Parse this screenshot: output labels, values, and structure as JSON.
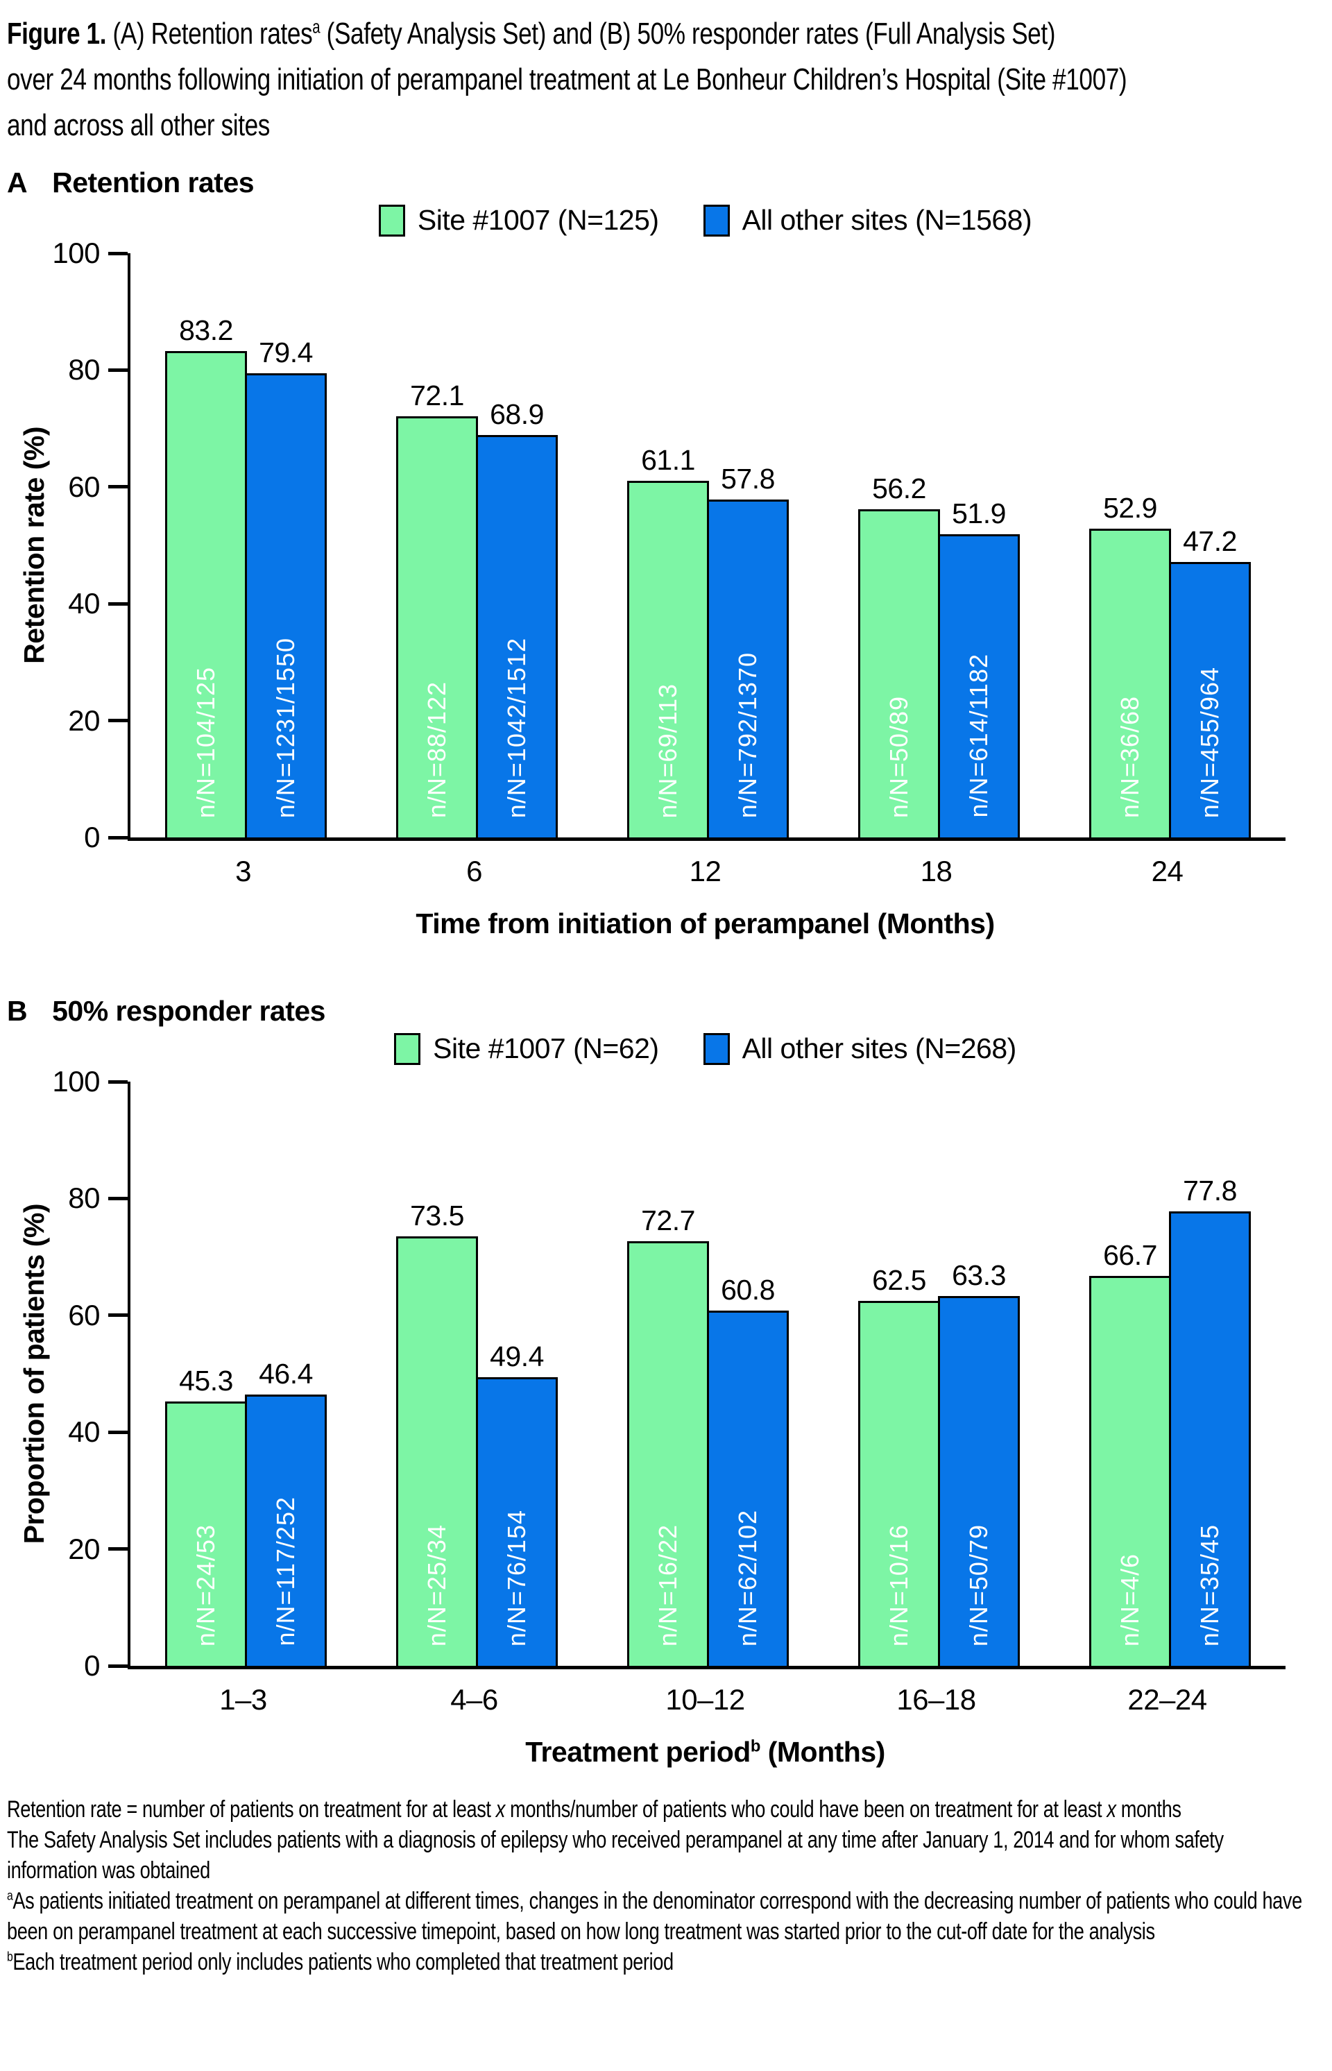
{
  "figure_title": {
    "line1": [
      {
        "t": "Figure 1.",
        "s": "b"
      },
      {
        "t": " (A) Retention rates",
        "s": ""
      },
      {
        "t": "a",
        "s": "sup"
      },
      {
        "t": " (Safety Analysis Set) and (B) 50% responder rates (Full Analysis Set)",
        "s": ""
      }
    ],
    "line2": [
      {
        "t": "over 24 months following initiation of perampanel treatment at Le Bonheur Children’s Hospital (Site #1007)",
        "s": ""
      }
    ],
    "line3": [
      {
        "t": "and across all other sites",
        "s": ""
      }
    ]
  },
  "colors": {
    "site_1007_green": "#7DF5A5",
    "all_other_sites_blue": "#0876E8",
    "bar_outline": "#000000",
    "bar_inner_text": "#FFFFFF"
  },
  "chart_data": [
    {
      "type": "bar",
      "panel": "A",
      "heading": "Retention rates",
      "ylabel": "Retention rate (%)",
      "xlabel_rich": [
        {
          "t": "Time from initiation of perampanel (Months)",
          "s": ""
        }
      ],
      "ylim": [
        0,
        100
      ],
      "yticks": [
        0,
        20,
        40,
        60,
        80,
        100
      ],
      "grid": "off",
      "legend_position": "top-center",
      "categories": [
        "3",
        "6",
        "12",
        "18",
        "24"
      ],
      "legend": [
        {
          "name": "Site #1007 (N=125)",
          "color": "#7DF5A5"
        },
        {
          "name": "All other sites (N=1568)",
          "color": "#0876E8"
        }
      ],
      "series": [
        {
          "name": "Site #1007 (N=125)",
          "color": "#7DF5A5",
          "values": [
            83.2,
            72.1,
            61.1,
            56.2,
            52.9
          ],
          "labels": [
            "n/N=104/125",
            "n/N=88/122",
            "n/N=69/113",
            "n/N=50/89",
            "n/N=36/68"
          ]
        },
        {
          "name": "All other sites (N=1568)",
          "color": "#0876E8",
          "values": [
            79.4,
            68.9,
            57.8,
            51.9,
            47.2
          ],
          "labels": [
            "n/N=1231/1550",
            "n/N=1042/1512",
            "n/N=792/1370",
            "n/N=614/1182",
            "n/N=455/964"
          ]
        }
      ]
    },
    {
      "type": "bar",
      "panel": "B",
      "heading": "50% responder rates",
      "ylabel": "Proportion of patients (%)",
      "xlabel_rich": [
        {
          "t": "Treatment period",
          "s": ""
        },
        {
          "t": "b",
          "s": "sup"
        },
        {
          "t": " (Months)",
          "s": ""
        }
      ],
      "ylim": [
        0,
        100
      ],
      "yticks": [
        0,
        20,
        40,
        60,
        80,
        100
      ],
      "grid": "off",
      "legend_position": "top-center",
      "categories": [
        "1–3",
        "4–6",
        "10–12",
        "16–18",
        "22–24"
      ],
      "legend": [
        {
          "name": "Site #1007 (N=62)",
          "color": "#7DF5A5"
        },
        {
          "name": "All other sites (N=268)",
          "color": "#0876E8"
        }
      ],
      "series": [
        {
          "name": "Site #1007 (N=62)",
          "color": "#7DF5A5",
          "values": [
            45.3,
            73.5,
            72.7,
            62.5,
            66.7
          ],
          "labels": [
            "n/N=24/53",
            "n/N=25/34",
            "n/N=16/22",
            "n/N=10/16",
            "n/N=4/6"
          ]
        },
        {
          "name": "All other sites (N=268)",
          "color": "#0876E8",
          "values": [
            46.4,
            49.4,
            60.8,
            63.3,
            77.8
          ],
          "labels": [
            "n/N=117/252",
            "n/N=76/154",
            "n/N=62/102",
            "n/N=50/79",
            "n/N=35/45"
          ]
        }
      ]
    }
  ],
  "footnotes": [
    [
      {
        "t": "Retention rate = number of patients on treatment for at least ",
        "s": ""
      },
      {
        "t": "x",
        "s": "i"
      },
      {
        "t": " months/number of patients who could have been on treatment for at least ",
        "s": ""
      },
      {
        "t": "x",
        "s": "i"
      },
      {
        "t": " months",
        "s": ""
      }
    ],
    [
      {
        "t": "The Safety Analysis Set includes patients with a diagnosis of epilepsy who received perampanel at any time after January 1, 2014 and for whom safety information was obtained",
        "s": ""
      }
    ],
    [
      {
        "t": "a",
        "s": "sup"
      },
      {
        "t": "As patients initiated treatment on perampanel at different times, changes in the denominator correspond with the decreasing number of patients who could have been on perampanel treatment at each successive timepoint, based on how long treatment was started prior to the cut-off date for the analysis",
        "s": ""
      }
    ],
    [
      {
        "t": "b",
        "s": "sup"
      },
      {
        "t": "Each treatment period only includes patients who completed that treatment period",
        "s": ""
      }
    ]
  ]
}
